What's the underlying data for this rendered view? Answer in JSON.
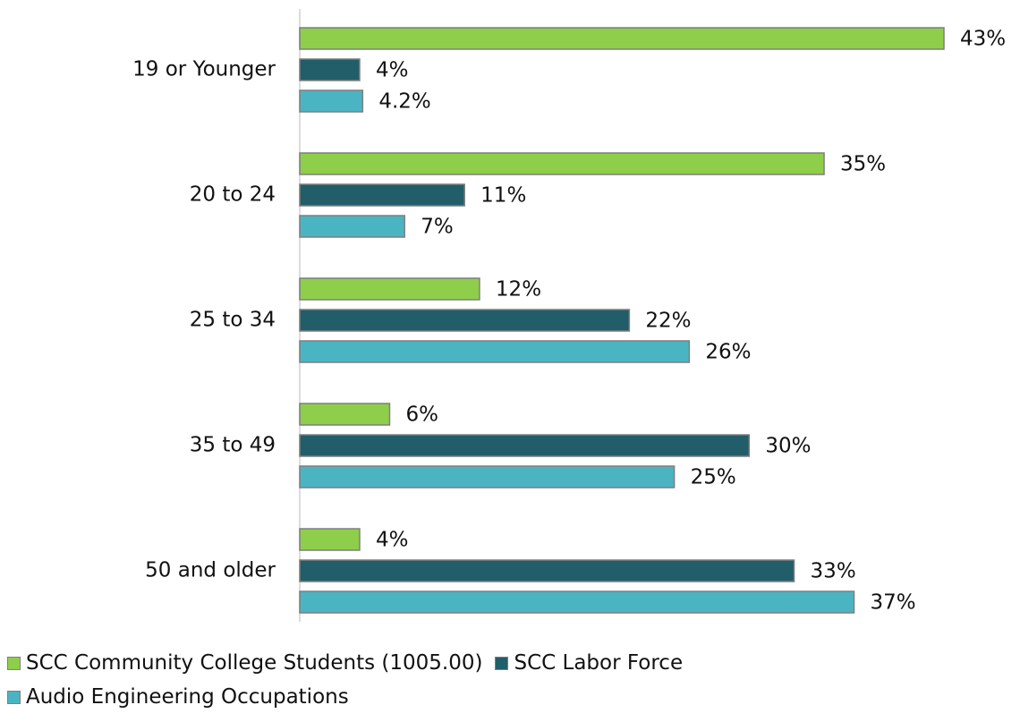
{
  "chart_data": {
    "type": "hbar",
    "categories": [
      "19 or Younger",
      "20 to 24",
      "25 to 34",
      "35 to 49",
      "50 and older"
    ],
    "series": [
      {
        "name": "SCC Community College Students (1005.00)",
        "color": "#8fce4a",
        "values": [
          43,
          35,
          12,
          6,
          4
        ],
        "value_labels": [
          "43%",
          "35%",
          "12%",
          "6%",
          "4%"
        ]
      },
      {
        "name": "SCC Labor Force",
        "color": "#215e69",
        "values": [
          4,
          11,
          22,
          30,
          33
        ],
        "value_labels": [
          "4%",
          "11%",
          "22%",
          "30%",
          "33%"
        ]
      },
      {
        "name": "Audio Engineering Occupations",
        "color": "#4bb4c3",
        "values": [
          4.2,
          7,
          26,
          25,
          37
        ],
        "value_labels": [
          "4.2%",
          "7%",
          "26%",
          "25%",
          "37%"
        ]
      }
    ]
  }
}
